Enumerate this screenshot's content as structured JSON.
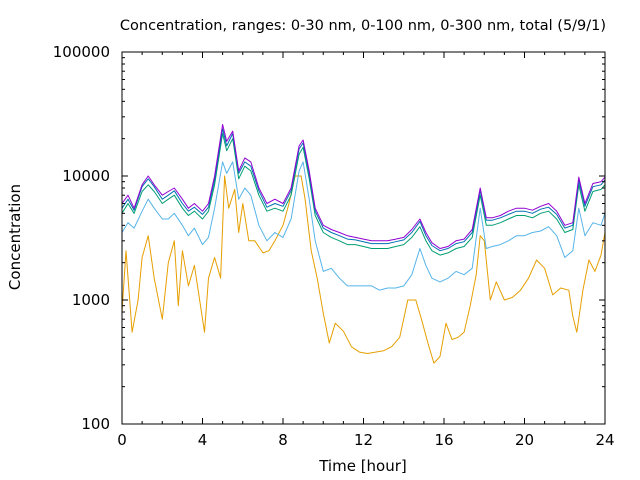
{
  "chart_data": {
    "type": "line",
    "title": "Concentration, ranges: 0-30 nm, 0-100 nm, 0-300 nm, total (5/9/1)",
    "xlabel": "Time [hour]",
    "ylabel": "Concentration",
    "xlim": [
      0,
      24
    ],
    "ylim": [
      100,
      100000
    ],
    "yscale": "log",
    "xticks": [
      0,
      4,
      8,
      12,
      16,
      20,
      24
    ],
    "xtick_labels": [
      "0",
      "4",
      "8",
      "12",
      "16",
      "20",
      "24"
    ],
    "yticks": [
      100,
      1000,
      10000,
      100000
    ],
    "ytick_labels": [
      "100",
      "1000",
      "10000",
      "100000"
    ],
    "grid": false,
    "legend": "none",
    "series": [
      {
        "color": "#E69F00",
        "x": [
          0,
          0.2,
          0.5,
          0.8,
          1.0,
          1.3,
          1.6,
          2.0,
          2.3,
          2.6,
          2.8,
          3.0,
          3.3,
          3.6,
          3.9,
          4.1,
          4.3,
          4.6,
          4.9,
          5.1,
          5.3,
          5.6,
          5.8,
          6.0,
          6.3,
          6.6,
          7.0,
          7.3,
          7.6,
          8.0,
          8.3,
          8.6,
          8.9,
          9.1,
          9.4,
          9.7,
          10.0,
          10.3,
          10.6,
          11.0,
          11.4,
          11.8,
          12.2,
          12.6,
          13.0,
          13.4,
          13.8,
          14.2,
          14.6,
          14.9,
          15.2,
          15.5,
          15.8,
          16.1,
          16.4,
          16.7,
          17.0,
          17.3,
          17.6,
          17.8,
          18.0,
          18.3,
          18.6,
          19.0,
          19.4,
          19.8,
          20.2,
          20.6,
          21.0,
          21.4,
          21.8,
          22.2,
          22.4,
          22.6,
          22.9,
          23.2,
          23.5,
          23.8,
          24.0
        ],
        "y": [
          800,
          2500,
          550,
          1000,
          2200,
          3300,
          1500,
          700,
          2000,
          3000,
          900,
          2500,
          1300,
          1900,
          900,
          550,
          1500,
          2200,
          1500,
          10000,
          5500,
          7800,
          3500,
          6000,
          3000,
          3000,
          2400,
          2500,
          3000,
          4000,
          6000,
          10000,
          10000,
          6500,
          2500,
          1500,
          780,
          450,
          650,
          560,
          420,
          380,
          370,
          380,
          390,
          420,
          500,
          1000,
          1000,
          680,
          450,
          310,
          350,
          650,
          480,
          500,
          550,
          900,
          1600,
          3300,
          3000,
          1000,
          1400,
          1000,
          1050,
          1200,
          1500,
          2100,
          1800,
          1100,
          1250,
          1200,
          740,
          550,
          1200,
          2100,
          1700,
          2300,
          3500
        ]
      },
      {
        "color": "#56B4E9",
        "x": [
          0,
          0.3,
          0.6,
          1.0,
          1.3,
          1.6,
          2.0,
          2.3,
          2.6,
          3.0,
          3.3,
          3.6,
          4.0,
          4.3,
          4.6,
          5.0,
          5.2,
          5.5,
          5.8,
          6.1,
          6.4,
          6.8,
          7.2,
          7.6,
          8.0,
          8.4,
          8.8,
          9.0,
          9.3,
          9.6,
          10.0,
          10.4,
          10.8,
          11.2,
          11.6,
          12.0,
          12.4,
          12.8,
          13.2,
          13.6,
          14.0,
          14.4,
          14.8,
          15.1,
          15.4,
          15.8,
          16.2,
          16.6,
          17.0,
          17.4,
          17.8,
          18.1,
          18.4,
          18.8,
          19.2,
          19.6,
          20.0,
          20.4,
          20.8,
          21.2,
          21.6,
          22.0,
          22.4,
          22.7,
          23.0,
          23.4,
          23.8,
          24.0
        ],
        "y": [
          3500,
          4200,
          3800,
          5200,
          6500,
          5500,
          4500,
          4500,
          5000,
          4000,
          3300,
          3800,
          2800,
          3200,
          5500,
          13000,
          10500,
          13000,
          6500,
          8000,
          7000,
          4000,
          3000,
          3500,
          3200,
          4500,
          11000,
          13000,
          6500,
          3000,
          1700,
          1800,
          1500,
          1300,
          1300,
          1300,
          1300,
          1200,
          1250,
          1250,
          1300,
          1600,
          2600,
          1900,
          1500,
          1400,
          1500,
          1700,
          1600,
          1800,
          5500,
          2600,
          2700,
          2800,
          3000,
          3300,
          3300,
          3500,
          3600,
          3900,
          3300,
          2200,
          2500,
          5500,
          3300,
          4200,
          4000,
          5000
        ]
      },
      {
        "color": "#009E73",
        "x": [
          0,
          0.3,
          0.6,
          1.0,
          1.3,
          1.6,
          2.0,
          2.3,
          2.6,
          3.0,
          3.3,
          3.6,
          4.0,
          4.3,
          4.6,
          5.0,
          5.2,
          5.5,
          5.8,
          6.1,
          6.4,
          6.8,
          7.2,
          7.6,
          8.0,
          8.4,
          8.8,
          9.0,
          9.3,
          9.6,
          10.0,
          10.4,
          10.8,
          11.2,
          11.6,
          12.0,
          12.4,
          12.8,
          13.2,
          13.6,
          14.0,
          14.4,
          14.8,
          15.1,
          15.4,
          15.8,
          16.2,
          16.6,
          17.0,
          17.4,
          17.8,
          18.1,
          18.4,
          18.8,
          19.2,
          19.6,
          20.0,
          20.4,
          20.8,
          21.2,
          21.6,
          22.0,
          22.4,
          22.7,
          23.0,
          23.4,
          23.8,
          24.0
        ],
        "y": [
          5000,
          6000,
          5000,
          7500,
          8500,
          7500,
          6000,
          6500,
          7000,
          5500,
          4800,
          5200,
          4500,
          5200,
          8500,
          22000,
          16000,
          20000,
          9500,
          12000,
          11000,
          7000,
          5200,
          5500,
          5200,
          7000,
          15000,
          17000,
          9500,
          4800,
          3500,
          3200,
          3000,
          2800,
          2800,
          2700,
          2600,
          2600,
          2600,
          2700,
          2800,
          3200,
          3900,
          3000,
          2500,
          2300,
          2400,
          2600,
          2700,
          3200,
          7000,
          4000,
          4000,
          4200,
          4500,
          4800,
          4800,
          4600,
          5000,
          5200,
          4500,
          3500,
          3700,
          8500,
          5200,
          7500,
          7800,
          8500
        ]
      },
      {
        "color": "#0072B2",
        "x": [
          0,
          0.3,
          0.6,
          1.0,
          1.3,
          1.6,
          2.0,
          2.3,
          2.6,
          3.0,
          3.3,
          3.6,
          4.0,
          4.3,
          4.6,
          5.0,
          5.2,
          5.5,
          5.8,
          6.1,
          6.4,
          6.8,
          7.2,
          7.6,
          8.0,
          8.4,
          8.8,
          9.0,
          9.3,
          9.6,
          10.0,
          10.4,
          10.8,
          11.2,
          11.6,
          12.0,
          12.4,
          12.8,
          13.2,
          13.6,
          14.0,
          14.4,
          14.8,
          15.1,
          15.4,
          15.8,
          16.2,
          16.6,
          17.0,
          17.4,
          17.8,
          18.1,
          18.4,
          18.8,
          19.2,
          19.6,
          20.0,
          20.4,
          20.8,
          21.2,
          21.6,
          22.0,
          22.4,
          22.7,
          23.0,
          23.4,
          23.8,
          24.0
        ],
        "y": [
          5500,
          6500,
          5300,
          8200,
          9500,
          8200,
          6500,
          7000,
          7600,
          6000,
          5200,
          5600,
          4900,
          5600,
          9300,
          24000,
          17500,
          22000,
          10500,
          13000,
          12000,
          7600,
          5600,
          6000,
          5700,
          7600,
          16500,
          18500,
          10300,
          5200,
          3800,
          3500,
          3300,
          3100,
          3050,
          2950,
          2850,
          2850,
          2850,
          2950,
          3050,
          3500,
          4300,
          3300,
          2750,
          2500,
          2600,
          2850,
          2950,
          3500,
          7600,
          4400,
          4400,
          4600,
          4900,
          5200,
          5200,
          5000,
          5400,
          5600,
          4900,
          3800,
          4000,
          9200,
          5700,
          8200,
          8500,
          9300
        ]
      },
      {
        "color": "#9400D3",
        "x": [
          0,
          0.3,
          0.6,
          1.0,
          1.3,
          1.6,
          2.0,
          2.3,
          2.6,
          3.0,
          3.3,
          3.6,
          4.0,
          4.3,
          4.6,
          5.0,
          5.2,
          5.5,
          5.8,
          6.1,
          6.4,
          6.8,
          7.2,
          7.6,
          8.0,
          8.4,
          8.8,
          9.0,
          9.3,
          9.6,
          10.0,
          10.4,
          10.8,
          11.2,
          11.6,
          12.0,
          12.4,
          12.8,
          13.2,
          13.6,
          14.0,
          14.4,
          14.8,
          15.1,
          15.4,
          15.8,
          16.2,
          16.6,
          17.0,
          17.4,
          17.8,
          18.1,
          18.4,
          18.8,
          19.2,
          19.6,
          20.0,
          20.4,
          20.8,
          21.2,
          21.6,
          22.0,
          22.4,
          22.7,
          23.0,
          23.4,
          23.8,
          24.0
        ],
        "y": [
          6000,
          7000,
          5500,
          8500,
          10000,
          8500,
          7000,
          7500,
          8000,
          6500,
          5500,
          6000,
          5200,
          6000,
          10000,
          26000,
          19000,
          23000,
          11000,
          14000,
          13000,
          8000,
          6000,
          6500,
          6000,
          8000,
          17500,
          19500,
          11000,
          5500,
          4000,
          3700,
          3500,
          3300,
          3200,
          3100,
          3000,
          3000,
          3000,
          3100,
          3200,
          3700,
          4500,
          3500,
          2900,
          2600,
          2700,
          3000,
          3100,
          3700,
          8000,
          4600,
          4600,
          4800,
          5200,
          5500,
          5500,
          5300,
          5700,
          6000,
          5200,
          4000,
          4200,
          9800,
          6000,
          8700,
          9000,
          9800
        ]
      }
    ]
  }
}
